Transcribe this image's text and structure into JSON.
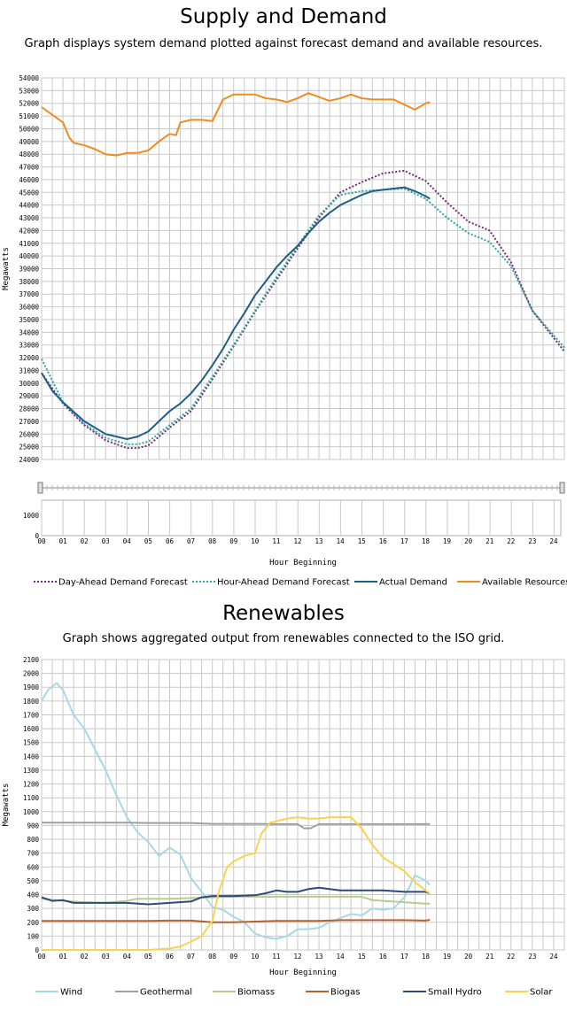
{
  "chart_data": [
    {
      "type": "line",
      "title": "Supply and Demand",
      "subtitle": "Graph displays system demand plotted against forecast demand and available resources.",
      "xlabel": "Hour Beginning",
      "ylabel": "Megawatts",
      "xlim": [
        0,
        24.5
      ],
      "ylim": [
        24000,
        54000
      ],
      "yticks": [
        24000,
        25000,
        26000,
        27000,
        28000,
        29000,
        30000,
        31000,
        32000,
        33000,
        34000,
        35000,
        36000,
        37000,
        38000,
        39000,
        40000,
        41000,
        42000,
        43000,
        44000,
        45000,
        46000,
        47000,
        48000,
        49000,
        50000,
        51000,
        52000,
        53000,
        54000
      ],
      "xtick_labels": [
        "00",
        "01",
        "02",
        "03",
        "04",
        "05",
        "06",
        "07",
        "08",
        "09",
        "10",
        "11",
        "12",
        "13",
        "14",
        "15",
        "16",
        "17",
        "18",
        "19",
        "20",
        "21",
        "22",
        "23",
        "24"
      ],
      "grid": true,
      "legend": "bottom",
      "series": [
        {
          "name": "Day-Ahead Demand Forecast",
          "color": "#7b2a7b",
          "style": "dotted",
          "x": [
            0,
            1,
            2,
            3,
            4,
            4.5,
            5,
            6,
            7,
            8,
            9,
            10,
            11,
            12,
            13,
            14,
            15,
            16,
            17,
            18,
            19,
            20,
            21,
            22,
            23,
            24.5
          ],
          "y": [
            30800,
            28400,
            26700,
            25500,
            24900,
            24900,
            25100,
            26500,
            27800,
            30300,
            32900,
            35600,
            38100,
            40600,
            43000,
            45000,
            45800,
            46500,
            46700,
            45900,
            44200,
            42700,
            42000,
            39500,
            35700,
            32500
          ]
        },
        {
          "name": "Hour-Ahead Demand Forecast",
          "color": "#2aa7a0",
          "style": "dotted",
          "x": [
            0,
            1,
            2,
            3,
            4,
            4.5,
            5,
            6,
            7,
            8,
            9,
            10,
            11,
            12,
            13,
            14,
            15,
            16,
            17,
            18,
            19,
            20,
            21,
            22,
            23,
            24.5
          ],
          "y": [
            31900,
            28500,
            26800,
            25700,
            25200,
            25200,
            25400,
            26700,
            28000,
            30500,
            33000,
            35700,
            38300,
            40800,
            43200,
            44800,
            45100,
            45200,
            45300,
            44500,
            43000,
            41800,
            41100,
            39200,
            35700,
            32800
          ]
        },
        {
          "name": "Actual Demand",
          "color": "#1f5f86",
          "style": "solid",
          "x": [
            0,
            0.5,
            1,
            2,
            3,
            3.5,
            4,
            4.5,
            5,
            5.5,
            6,
            6.5,
            7,
            7.5,
            8,
            8.5,
            9,
            9.5,
            10,
            10.5,
            11,
            11.5,
            12,
            12.5,
            13,
            13.5,
            14,
            14.5,
            15,
            15.5,
            16,
            16.5,
            17,
            17.5,
            18,
            18.2
          ],
          "y": [
            30800,
            29400,
            28500,
            27000,
            26000,
            25800,
            25600,
            25800,
            26200,
            27000,
            27800,
            28400,
            29200,
            30200,
            31400,
            32700,
            34200,
            35500,
            36900,
            38000,
            39100,
            40000,
            40800,
            41800,
            42700,
            43400,
            44000,
            44400,
            44800,
            45100,
            45200,
            45300,
            45400,
            45100,
            44700,
            44500
          ]
        },
        {
          "name": "Available Resources",
          "color": "#f08c1e",
          "style": "solid",
          "x": [
            0,
            0.5,
            1,
            1.3,
            1.5,
            2,
            2.5,
            3,
            3.5,
            4,
            4.5,
            5,
            5.5,
            6,
            6.3,
            6.5,
            7,
            7.5,
            8,
            8.5,
            9,
            9.5,
            10,
            10.5,
            11,
            11.5,
            12,
            12.5,
            13,
            13.5,
            14,
            14.5,
            15,
            15.5,
            16,
            16.5,
            17,
            17.5,
            18,
            18.2
          ],
          "y": [
            51700,
            51100,
            50500,
            49300,
            48900,
            48700,
            48400,
            48000,
            47900,
            48100,
            48100,
            48300,
            49000,
            49600,
            49500,
            50500,
            50700,
            50700,
            50600,
            52300,
            52700,
            52700,
            52700,
            52400,
            52300,
            52100,
            52400,
            52800,
            52500,
            52200,
            52400,
            52700,
            52400,
            52300,
            52300,
            52300,
            51900,
            51500,
            52000,
            52100
          ]
        }
      ]
    },
    {
      "type": "line",
      "title": "Renewables",
      "subtitle": "Graph shows aggregated output from renewables connected to the ISO grid.",
      "xlabel": "Hour Beginning",
      "ylabel": "Megawatts",
      "xlim": [
        0,
        24.5
      ],
      "ylim": [
        0,
        2100
      ],
      "yticks": [
        0,
        100,
        200,
        300,
        400,
        500,
        600,
        700,
        800,
        900,
        1000,
        1100,
        1200,
        1300,
        1400,
        1500,
        1600,
        1700,
        1800,
        1900,
        2000,
        2100
      ],
      "xtick_labels": [
        "00",
        "01",
        "02",
        "03",
        "04",
        "05",
        "06",
        "07",
        "08",
        "09",
        "10",
        "11",
        "12",
        "13",
        "14",
        "15",
        "16",
        "17",
        "18",
        "19",
        "20",
        "21",
        "22",
        "23",
        "24"
      ],
      "grid": true,
      "legend": "bottom",
      "series": [
        {
          "name": "Wind",
          "color": "#a8d8e8",
          "x": [
            0,
            0.3,
            0.7,
            1,
            1.5,
            2,
            2.5,
            3,
            3.5,
            4,
            4.5,
            5,
            5.5,
            6,
            6.5,
            7,
            7.5,
            8,
            8.5,
            9,
            9.5,
            10,
            10.5,
            11,
            11.5,
            12,
            12.5,
            13,
            13.5,
            14,
            14.5,
            15,
            15.5,
            16,
            16.5,
            17,
            17.5,
            18,
            18.2
          ],
          "y": [
            1800,
            1880,
            1930,
            1880,
            1700,
            1600,
            1450,
            1300,
            1120,
            960,
            850,
            780,
            680,
            740,
            690,
            520,
            420,
            310,
            290,
            240,
            200,
            120,
            90,
            80,
            100,
            150,
            150,
            160,
            200,
            230,
            260,
            250,
            300,
            290,
            300,
            380,
            540,
            500,
            470
          ]
        },
        {
          "name": "Geothermal",
          "color": "#a0a0a0",
          "x": [
            0,
            1,
            2,
            3,
            4,
            5,
            6,
            7,
            8,
            9,
            10,
            11,
            12,
            12.3,
            12.6,
            13,
            13.5,
            14,
            15,
            16,
            17,
            18,
            18.2
          ],
          "y": [
            920,
            920,
            920,
            920,
            920,
            918,
            918,
            918,
            912,
            912,
            912,
            910,
            910,
            880,
            880,
            910,
            910,
            910,
            910,
            910,
            910,
            910,
            910
          ]
        },
        {
          "name": "Biomass",
          "color": "#b5cd8e",
          "x": [
            0,
            1,
            2,
            3,
            4,
            4.5,
            5,
            6,
            7,
            8,
            9,
            10,
            11,
            12,
            13,
            14,
            15,
            15.5,
            16,
            17,
            18,
            18.2
          ],
          "y": [
            370,
            355,
            345,
            340,
            355,
            370,
            370,
            370,
            375,
            380,
            385,
            385,
            385,
            385,
            385,
            385,
            385,
            360,
            355,
            345,
            335,
            335
          ]
        },
        {
          "name": "Biogas",
          "color": "#b5622e",
          "x": [
            0,
            1,
            2,
            3,
            4,
            5,
            6,
            7,
            8,
            9,
            10,
            11,
            12,
            13,
            14,
            15,
            16,
            17,
            18,
            18.2
          ],
          "y": [
            210,
            210,
            210,
            210,
            210,
            210,
            212,
            212,
            200,
            200,
            205,
            210,
            210,
            210,
            215,
            215,
            215,
            215,
            212,
            218
          ]
        },
        {
          "name": "Small Hydro",
          "color": "#2d4a7a",
          "x": [
            0,
            0.5,
            1,
            1.5,
            2,
            3,
            4,
            5,
            6,
            7,
            7.5,
            8,
            9,
            10,
            10.5,
            11,
            11.5,
            12,
            12.5,
            13,
            14,
            15,
            16,
            17,
            18,
            18.2
          ],
          "y": [
            380,
            355,
            360,
            340,
            340,
            340,
            340,
            330,
            340,
            350,
            380,
            390,
            390,
            395,
            410,
            430,
            420,
            420,
            440,
            450,
            430,
            430,
            430,
            420,
            420,
            410
          ]
        },
        {
          "name": "Solar",
          "color": "#f8d44c",
          "x": [
            0,
            1,
            2,
            3,
            4,
            5,
            6,
            6.5,
            7,
            7.5,
            8,
            8.3,
            8.7,
            9,
            9.5,
            10,
            10.3,
            10.7,
            11,
            11.5,
            12,
            12.5,
            13,
            13.5,
            14,
            14.5,
            15,
            15.5,
            16,
            16.5,
            17,
            17.5,
            18,
            18.2
          ],
          "y": [
            0,
            0,
            0,
            0,
            0,
            0,
            10,
            25,
            60,
            100,
            210,
            420,
            600,
            640,
            680,
            700,
            840,
            920,
            930,
            950,
            960,
            950,
            950,
            960,
            960,
            960,
            880,
            760,
            670,
            620,
            570,
            490,
            430,
            410
          ]
        }
      ]
    }
  ]
}
